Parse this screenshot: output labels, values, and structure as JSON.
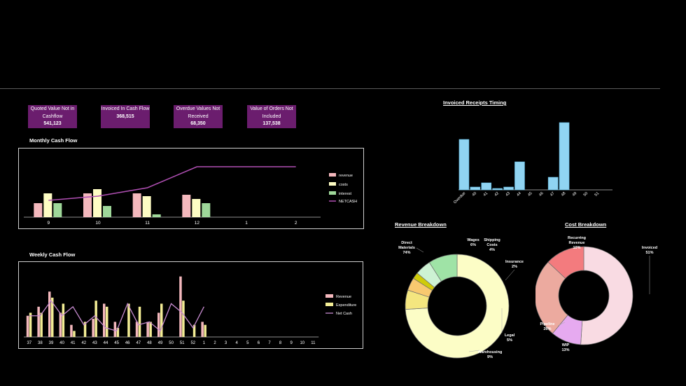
{
  "kpis": [
    {
      "label": "Quoted Value Not in Cashflow",
      "value": "541,123"
    },
    {
      "label": "Invoiced In Cash Flow",
      "value": "368,515"
    },
    {
      "label": "Overdue Values Not Received",
      "value": "68,350"
    },
    {
      "label": "Value of Orders Not Included",
      "value": "137,538"
    }
  ],
  "colors": {
    "kpi_bg": "#6b1d6e",
    "revenue": "#f4b8bd",
    "costs": "#fefdc4",
    "interest": "#9fd89a",
    "netcash": "#b04fb3",
    "expenditure": "#f3ed95",
    "timing": "#90d4f2"
  },
  "chart_data": [
    {
      "type": "bar",
      "title": "Monthly Cash Flow",
      "categories": [
        "9",
        "10",
        "11",
        "12",
        "1",
        "2"
      ],
      "series": [
        {
          "name": "revenue",
          "values": [
            10,
            17,
            17,
            16,
            0,
            0
          ]
        },
        {
          "name": "costs",
          "values": [
            17,
            20,
            15,
            13,
            0,
            0
          ]
        },
        {
          "name": "interest",
          "values": [
            10,
            8,
            2,
            10,
            0,
            0
          ]
        },
        {
          "name": "NETCASH",
          "type": "line",
          "values": [
            12,
            15,
            21,
            36,
            36,
            36
          ]
        }
      ],
      "ylim": [
        0,
        45
      ],
      "legend": "right"
    },
    {
      "type": "bar",
      "title": "Weekly Cash Flow",
      "categories": [
        "37",
        "38",
        "39",
        "40",
        "41",
        "42",
        "43",
        "44",
        "45",
        "46",
        "47",
        "48",
        "49",
        "50",
        "51",
        "52",
        "1",
        "2",
        "3",
        "4",
        "5",
        "6",
        "7",
        "8",
        "9",
        "10",
        "11"
      ],
      "series": [
        {
          "name": "Revenue",
          "values": [
            7,
            10,
            15,
            8,
            4,
            0,
            6,
            11,
            5,
            0,
            5,
            5,
            8,
            0,
            20,
            0,
            5,
            0,
            0,
            0,
            0,
            0,
            0,
            0,
            0,
            0,
            0
          ]
        },
        {
          "name": "Expenditure",
          "values": [
            8,
            8,
            13,
            11,
            2,
            5,
            12,
            10,
            3,
            11,
            10,
            5,
            11,
            0,
            12,
            4,
            4,
            0,
            0,
            0,
            0,
            0,
            0,
            0,
            0,
            0,
            0
          ]
        },
        {
          "name": "Net Cash",
          "type": "line",
          "values": [
            7,
            7,
            12,
            7,
            10,
            4,
            7,
            3,
            2,
            11,
            4,
            5,
            2,
            11,
            8,
            3,
            10,
            0,
            0,
            0,
            0,
            0,
            0,
            0,
            0,
            0,
            0
          ]
        }
      ],
      "ylim": [
        0,
        22
      ],
      "legend": "right"
    },
    {
      "type": "bar",
      "title": "Invoiced Receipts Timing",
      "categories": [
        "Overdue",
        "40",
        "41",
        "42",
        "43",
        "44",
        "45",
        "46",
        "47",
        "48",
        "49",
        "50",
        "51"
      ],
      "values": [
        36,
        2,
        5,
        1,
        2,
        20,
        0,
        0,
        9,
        48,
        0,
        0,
        0
      ],
      "ylim": [
        0,
        50
      ]
    },
    {
      "type": "pie",
      "title": "Revenue Breakdown",
      "labels": [
        "Direct Materials",
        "Wages",
        "Shipping Costs",
        "Insurance",
        "Legal",
        "Warehousing"
      ],
      "values": [
        74,
        6,
        4,
        2,
        5,
        9
      ],
      "value_labels": [
        "74%",
        "6%",
        "4%",
        "2%",
        "5%",
        "9%"
      ],
      "colors": [
        "#fcfdc6",
        "#f4e67f",
        "#f8c96f",
        "#cfcb08",
        "#cdf2d3",
        "#9fe3a6"
      ]
    },
    {
      "type": "pie",
      "title": "Cost Breakdown",
      "labels": [
        "Invoiced",
        "Recurring Revenue",
        "Pipeline",
        "WIP"
      ],
      "values": [
        51,
        10,
        26,
        13
      ],
      "value_labels": [
        "51%",
        "10%",
        "26%",
        "13%"
      ],
      "colors": [
        "#f9dbe3",
        "#e6aaf0",
        "#ecaa9f",
        "#f37b7e"
      ]
    }
  ]
}
